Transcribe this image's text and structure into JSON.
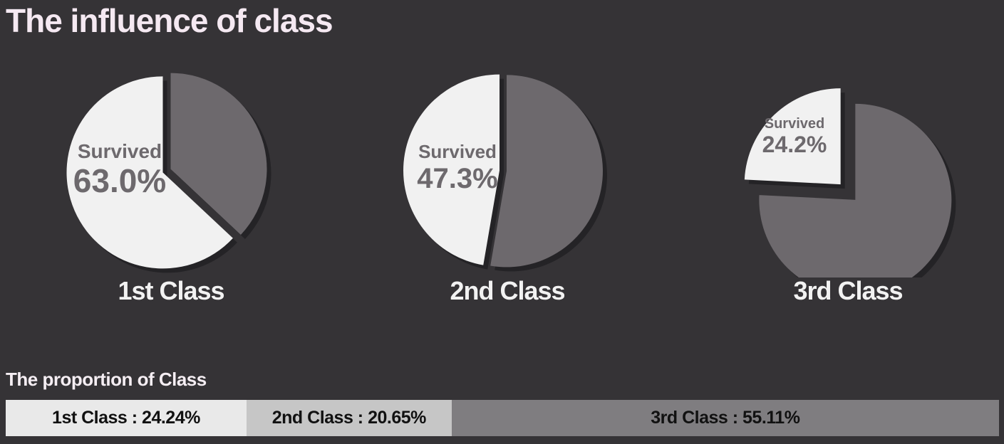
{
  "title": "The influence of class",
  "colors": {
    "survived": "#f1f1f1",
    "not_survived": "#6d696d",
    "background": "#353336",
    "bar_1st": "#e9e9e9",
    "bar_2nd": "#c6c6c6",
    "bar_3rd": "#7f7d80"
  },
  "chart_data": [
    {
      "type": "pie",
      "title": "1st Class",
      "slices": [
        {
          "label": "Survived",
          "value": 63.0,
          "value_label": "63.0%"
        },
        {
          "label": "",
          "value": 37.0
        }
      ]
    },
    {
      "type": "pie",
      "title": "2nd Class",
      "slices": [
        {
          "label": "Survived",
          "value": 47.3,
          "value_label": "47.3%"
        },
        {
          "label": "",
          "value": 52.7
        }
      ]
    },
    {
      "type": "pie",
      "title": "3rd Class",
      "slices": [
        {
          "label": "Survived",
          "value": 24.2,
          "value_label": "24.2%"
        },
        {
          "label": "",
          "value": 75.8
        }
      ]
    },
    {
      "type": "bar",
      "orientation": "horizontal-stacked",
      "title": "The proportion of Class",
      "categories": [
        "1st Class",
        "2nd Class",
        "3rd Class"
      ],
      "values": [
        24.24,
        20.65,
        55.11
      ],
      "value_labels": [
        "1st Class : 24.24%",
        "2nd Class : 20.65%",
        "3rd Class : 55.11%"
      ]
    }
  ]
}
